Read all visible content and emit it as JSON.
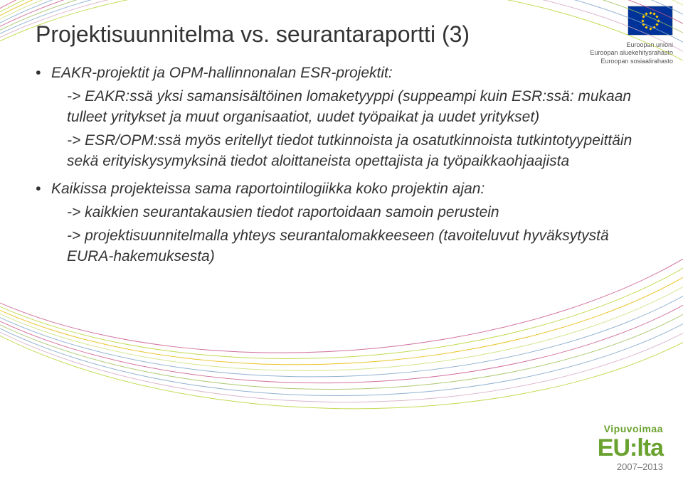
{
  "title": "Projektisuunnitelma vs. seurantaraportti (3)",
  "bullets": [
    {
      "head": "EAKR-projektit ja OPM-hallinnonalan ESR-projektit:",
      "lines": [
        "-> EAKR:ssä yksi samansisältöinen lomaketyyppi (suppeampi kuin ESR:ssä: mukaan tulleet yritykset ja muut organisaatiot, uudet työpaikat ja uudet yritykset)",
        "-> ESR/OPM:ssä myös eritellyt tiedot tutkinnoista ja osa­tutkinnoista tutkintotyypeittäin sekä erityiskysymyksinä tiedot aloittaneista opettajista ja työpaikkaohjaajista"
      ]
    },
    {
      "head": "Kaikissa projekteissa sama raportointilogiikka koko projektin ajan:",
      "lines": [
        "-> kaikkien seurantakausien tiedot raportoidaan samoin perustein",
        "-> projektisuunnitelmalla yhteys seurantalomakkeeseen (tavoiteluvut hyväksytystä EURA-hakemuksesta)"
      ]
    }
  ],
  "eu_labels": {
    "l1": "Euroopan unioni",
    "l2": "Euroopan aluekehitysrahasto",
    "l3": "Euroopan sosiaalirahasto"
  },
  "vipu": {
    "top": "Vipuvoimaa",
    "main": "EU:lta",
    "years": "2007–2013"
  },
  "wave_colors": [
    "#c9578b",
    "#b7d433",
    "#e6b800",
    "#cde07a",
    "#7fa4c9",
    "#c9578b",
    "#a0c05a",
    "#7fa4c9",
    "#d6a9c4",
    "#b7d433"
  ],
  "text_color": "#333333",
  "background_color": "#ffffff"
}
